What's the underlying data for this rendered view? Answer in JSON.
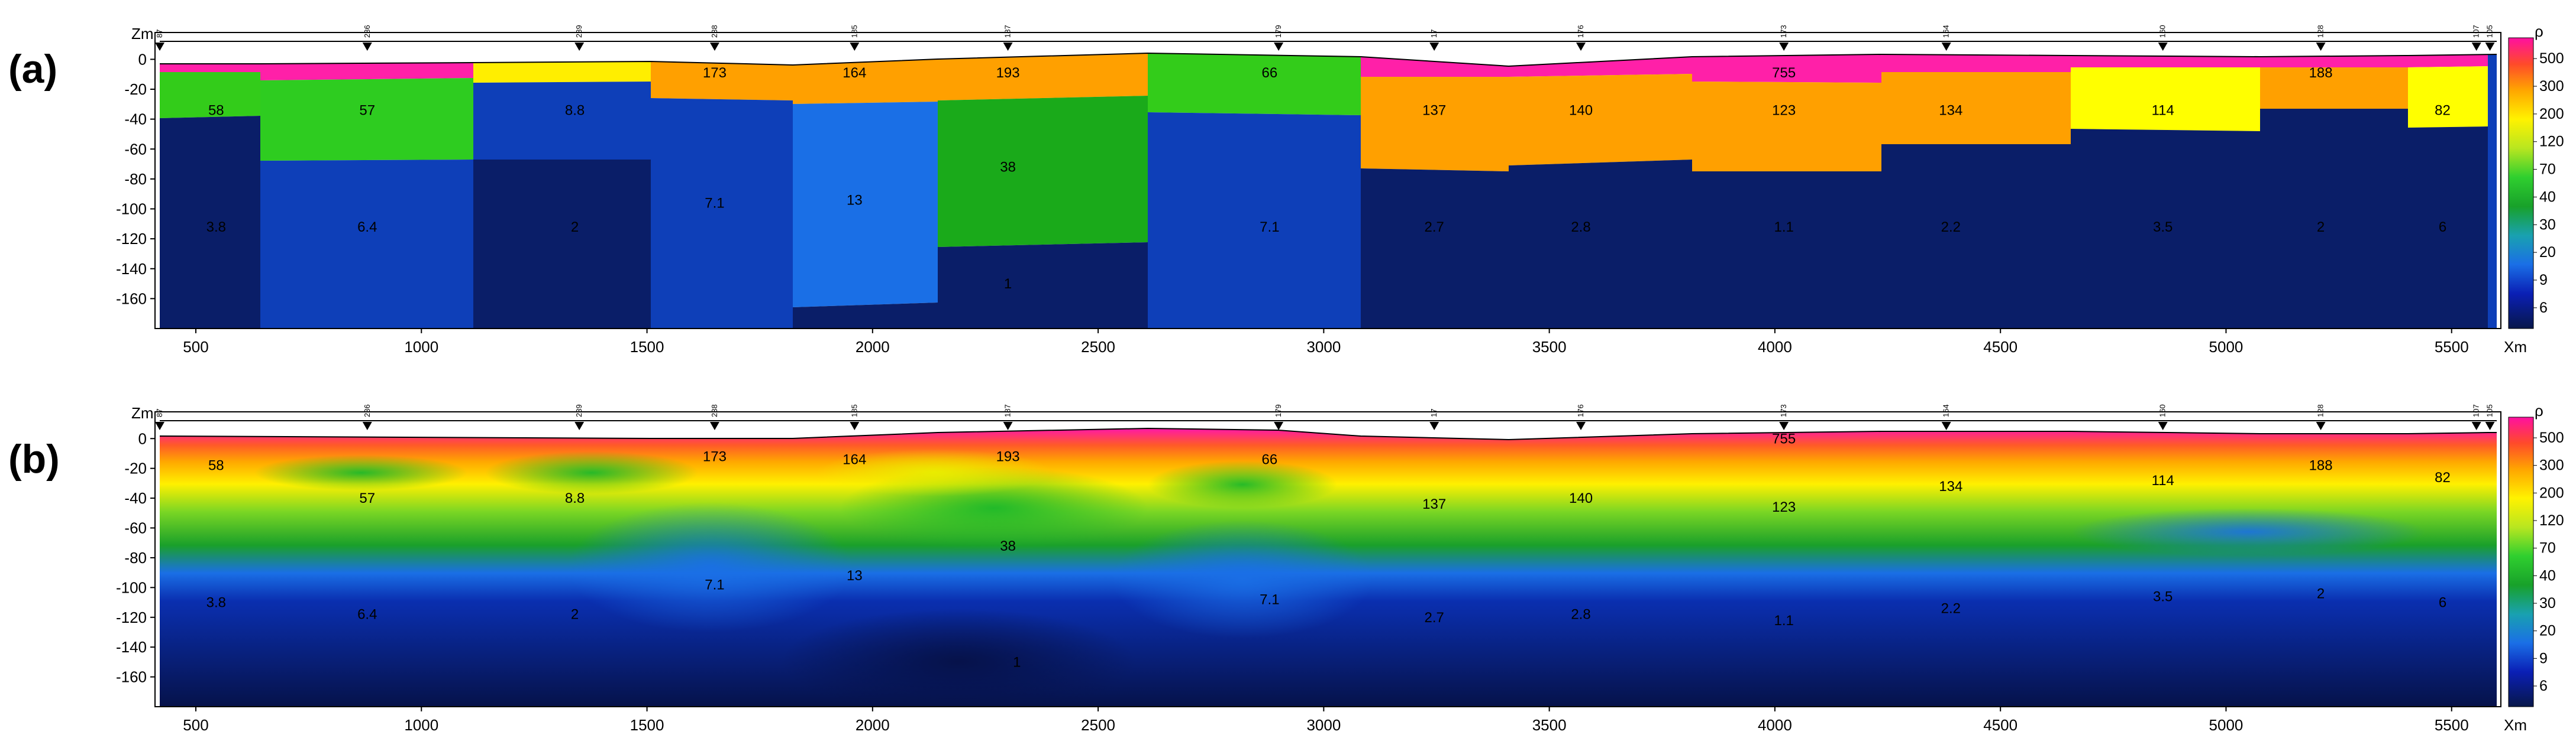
{
  "chart_data": [
    {
      "panel": "(a)",
      "type": "heatmap",
      "axes": {
        "xlabel": "Xm",
        "ylabel": "Zm",
        "xlim": [
          420,
          5600
        ],
        "ylim": [
          -180,
          12
        ],
        "xticks": [
          500,
          1000,
          1500,
          2000,
          2500,
          3000,
          3500,
          4000,
          4500,
          5000,
          5500
        ],
        "yticks": [
          0,
          -20,
          -40,
          -60,
          -80,
          -100,
          -120,
          -140,
          -160
        ]
      },
      "stations": [
        {
          "x": 420,
          "label": "87"
        },
        {
          "x": 880,
          "label": "236"
        },
        {
          "x": 1350,
          "label": "239"
        },
        {
          "x": 1650,
          "label": "238"
        },
        {
          "x": 1960,
          "label": "185"
        },
        {
          "x": 2300,
          "label": "187"
        },
        {
          "x": 2900,
          "label": "179"
        },
        {
          "x": 3245,
          "label": "17"
        },
        {
          "x": 3570,
          "label": "176"
        },
        {
          "x": 4020,
          "label": "173"
        },
        {
          "x": 4380,
          "label": "164"
        },
        {
          "x": 4860,
          "label": "160"
        },
        {
          "x": 5210,
          "label": "128"
        },
        {
          "x": 5555,
          "label": "107"
        },
        {
          "x": 5585,
          "label": "105"
        }
      ],
      "layers": [
        {
          "name": "top",
          "values": [
            "",
            "",
            "",
            "173",
            "164",
            "193",
            "66",
            "",
            "",
            "755",
            "",
            "",
            "188",
            ""
          ]
        },
        {
          "name": "middle",
          "values": [
            "58",
            "57",
            "8.8",
            "",
            "",
            "38",
            "",
            "137",
            "140",
            "123",
            "134",
            "114",
            "",
            "82"
          ]
        },
        {
          "name": "bottom",
          "values": [
            "3.8",
            "6.4",
            "2",
            "7.1",
            "13",
            "1",
            "7.1",
            "2.7",
            "2.8",
            "1.1",
            "2.2",
            "3.5",
            "2",
            "6"
          ]
        }
      ]
    },
    {
      "panel": "(b)",
      "type": "heatmap",
      "axes": {
        "xlabel": "Xm",
        "ylabel": "Zm",
        "xlim": [
          420,
          5600
        ],
        "ylim": [
          -180,
          12
        ],
        "xticks": [
          500,
          1000,
          1500,
          2000,
          2500,
          3000,
          3500,
          4000,
          4500,
          5000,
          5500
        ],
        "yticks": [
          0,
          -20,
          -40,
          -60,
          -80,
          -100,
          -120,
          -140,
          -160
        ]
      },
      "labels": [
        {
          "x": 545,
          "y": -18,
          "v": "58"
        },
        {
          "x": 545,
          "y": -110,
          "v": "3.8"
        },
        {
          "x": 880,
          "y": -40,
          "v": "57"
        },
        {
          "x": 880,
          "y": -118,
          "v": "6.4"
        },
        {
          "x": 1340,
          "y": -40,
          "v": "8.8"
        },
        {
          "x": 1340,
          "y": -118,
          "v": "2"
        },
        {
          "x": 1650,
          "y": -12,
          "v": "173"
        },
        {
          "x": 1650,
          "y": -98,
          "v": "7.1"
        },
        {
          "x": 1960,
          "y": -14,
          "v": "164"
        },
        {
          "x": 1960,
          "y": -92,
          "v": "13"
        },
        {
          "x": 2300,
          "y": -12,
          "v": "193"
        },
        {
          "x": 2300,
          "y": -72,
          "v": "38"
        },
        {
          "x": 2320,
          "y": -150,
          "v": "1"
        },
        {
          "x": 2880,
          "y": -14,
          "v": "66"
        },
        {
          "x": 2880,
          "y": -108,
          "v": "7.1"
        },
        {
          "x": 3245,
          "y": -44,
          "v": "137"
        },
        {
          "x": 3245,
          "y": -120,
          "v": "2.7"
        },
        {
          "x": 3570,
          "y": -40,
          "v": "140"
        },
        {
          "x": 3570,
          "y": -118,
          "v": "2.8"
        },
        {
          "x": 4020,
          "y": 0,
          "v": "755"
        },
        {
          "x": 4020,
          "y": -46,
          "v": "123"
        },
        {
          "x": 4020,
          "y": -122,
          "v": "1.1"
        },
        {
          "x": 4390,
          "y": -32,
          "v": "134"
        },
        {
          "x": 4390,
          "y": -114,
          "v": "2.2"
        },
        {
          "x": 4860,
          "y": -28,
          "v": "114"
        },
        {
          "x": 4860,
          "y": -106,
          "v": "3.5"
        },
        {
          "x": 5210,
          "y": -18,
          "v": "188"
        },
        {
          "x": 5210,
          "y": -104,
          "v": "2"
        },
        {
          "x": 5480,
          "y": -26,
          "v": "82"
        },
        {
          "x": 5480,
          "y": -110,
          "v": "6"
        }
      ]
    }
  ],
  "colorbar": {
    "title": "ρ",
    "levels": [
      6,
      9,
      20,
      30,
      40,
      70,
      120,
      200,
      300,
      500
    ],
    "colors": [
      "#0a1a6a",
      "#0e3fbf",
      "#1a6fe6",
      "#1aa0b0",
      "#1a9a2a",
      "#30c030",
      "#b0e020",
      "#fff200",
      "#ffa500",
      "#ff5a28",
      "#ff1493"
    ]
  },
  "figure": {
    "panel_labels": [
      "(a)",
      "(b)"
    ],
    "x_unit_label": "Xm",
    "z_unit_label": "Zm"
  }
}
